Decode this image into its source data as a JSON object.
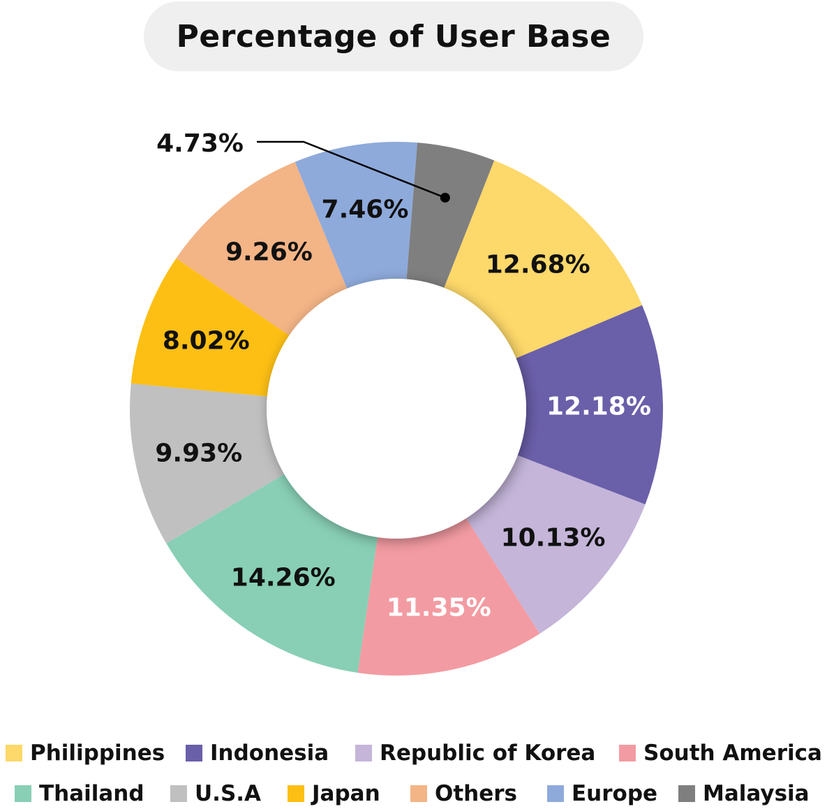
{
  "chart_data": {
    "type": "pie",
    "variant": "donut",
    "title": "Percentage of User Base",
    "slices": [
      {
        "label": "Philippines",
        "value": 12.68,
        "display": "12.68%",
        "color": "#fdd86a",
        "text_color": "#111111"
      },
      {
        "label": "Indonesia",
        "value": 12.18,
        "display": "12.18%",
        "color": "#6a5fa9",
        "text_color": "#ffffff"
      },
      {
        "label": "Republic of Korea",
        "value": 10.13,
        "display": "10.13%",
        "color": "#c4b5d9",
        "text_color": "#111111"
      },
      {
        "label": "South America",
        "value": 11.35,
        "display": "11.35%",
        "color": "#f39ba2",
        "text_color": "#ffffff"
      },
      {
        "label": "Thailand",
        "value": 14.26,
        "display": "14.26%",
        "color": "#88cfb5",
        "text_color": "#111111"
      },
      {
        "label": "U.S.A",
        "value": 9.93,
        "display": "9.93%",
        "color": "#c0c0c0",
        "text_color": "#111111"
      },
      {
        "label": "Japan",
        "value": 8.02,
        "display": "8.02%",
        "color": "#fdbf13",
        "text_color": "#111111"
      },
      {
        "label": "Others",
        "value": 9.26,
        "display": "9.26%",
        "color": "#f3b486",
        "text_color": "#111111"
      },
      {
        "label": "Europe",
        "value": 7.46,
        "display": "7.46%",
        "color": "#8eaadb",
        "text_color": "#111111"
      },
      {
        "label": "Malaysia",
        "value": 4.73,
        "display": "4.73%",
        "color": "#7f7f7f",
        "text_color": "#111111"
      }
    ],
    "start_slice": "Malaysia",
    "direction": "clockwise",
    "legend_position": "bottom",
    "callout_slice": "Malaysia"
  }
}
